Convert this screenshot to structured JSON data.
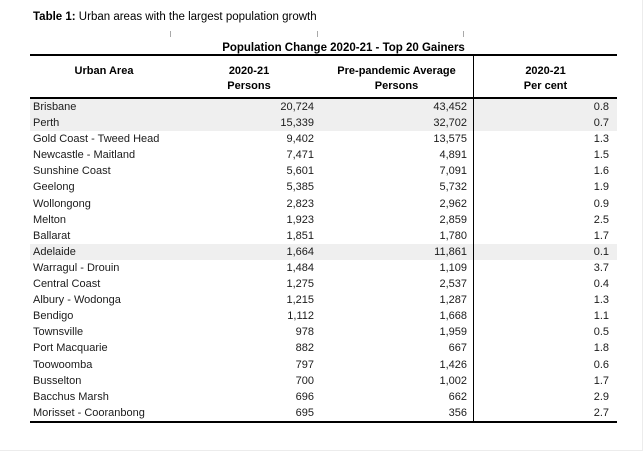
{
  "page": {
    "title_prefix": "Table 1:",
    "title_rest": " Urban areas with the largest population growth"
  },
  "table": {
    "caption": "Population Change 2020-21 - Top 20 Gainers",
    "columns": [
      {
        "line1": "Urban Area",
        "line2": ""
      },
      {
        "line1": "2020-21",
        "line2": "Persons"
      },
      {
        "line1": "Pre-pandemic Average",
        "line2": "Persons"
      },
      {
        "line1": "2020-21",
        "line2": "Per cent"
      }
    ],
    "rows": [
      {
        "urban_area": "Brisbane",
        "persons_2020_21": "20,724",
        "pre_pandemic_avg": "43,452",
        "per_cent": "0.8",
        "highlighted": true
      },
      {
        "urban_area": "Perth",
        "persons_2020_21": "15,339",
        "pre_pandemic_avg": "32,702",
        "per_cent": "0.7",
        "highlighted": true
      },
      {
        "urban_area": "Gold Coast - Tweed Head",
        "persons_2020_21": "9,402",
        "pre_pandemic_avg": "13,575",
        "per_cent": "1.3",
        "highlighted": false
      },
      {
        "urban_area": "Newcastle - Maitland",
        "persons_2020_21": "7,471",
        "pre_pandemic_avg": "4,891",
        "per_cent": "1.5",
        "highlighted": false
      },
      {
        "urban_area": "Sunshine Coast",
        "persons_2020_21": "5,601",
        "pre_pandemic_avg": "7,091",
        "per_cent": "1.6",
        "highlighted": false
      },
      {
        "urban_area": "Geelong",
        "persons_2020_21": "5,385",
        "pre_pandemic_avg": "5,732",
        "per_cent": "1.9",
        "highlighted": false
      },
      {
        "urban_area": "Wollongong",
        "persons_2020_21": "2,823",
        "pre_pandemic_avg": "2,962",
        "per_cent": "0.9",
        "highlighted": false
      },
      {
        "urban_area": "Melton",
        "persons_2020_21": "1,923",
        "pre_pandemic_avg": "2,859",
        "per_cent": "2.5",
        "highlighted": false
      },
      {
        "urban_area": "Ballarat",
        "persons_2020_21": "1,851",
        "pre_pandemic_avg": "1,780",
        "per_cent": "1.7",
        "highlighted": false
      },
      {
        "urban_area": "Adelaide",
        "persons_2020_21": "1,664",
        "pre_pandemic_avg": "11,861",
        "per_cent": "0.1",
        "highlighted": true
      },
      {
        "urban_area": "Warragul - Drouin",
        "persons_2020_21": "1,484",
        "pre_pandemic_avg": "1,109",
        "per_cent": "3.7",
        "highlighted": false
      },
      {
        "urban_area": "Central Coast",
        "persons_2020_21": "1,275",
        "pre_pandemic_avg": "2,537",
        "per_cent": "0.4",
        "highlighted": false
      },
      {
        "urban_area": "Albury - Wodonga",
        "persons_2020_21": "1,215",
        "pre_pandemic_avg": "1,287",
        "per_cent": "1.3",
        "highlighted": false
      },
      {
        "urban_area": "Bendigo",
        "persons_2020_21": "1,112",
        "pre_pandemic_avg": "1,668",
        "per_cent": "1.1",
        "highlighted": false
      },
      {
        "urban_area": "Townsville",
        "persons_2020_21": "978",
        "pre_pandemic_avg": "1,959",
        "per_cent": "0.5",
        "highlighted": false
      },
      {
        "urban_area": "Port Macquarie",
        "persons_2020_21": "882",
        "pre_pandemic_avg": "667",
        "per_cent": "1.8",
        "highlighted": false
      },
      {
        "urban_area": "Toowoomba",
        "persons_2020_21": "797",
        "pre_pandemic_avg": "1,426",
        "per_cent": "0.6",
        "highlighted": false
      },
      {
        "urban_area": "Busselton",
        "persons_2020_21": "700",
        "pre_pandemic_avg": "1,002",
        "per_cent": "1.7",
        "highlighted": false
      },
      {
        "urban_area": "Bacchus Marsh",
        "persons_2020_21": "696",
        "pre_pandemic_avg": "662",
        "per_cent": "2.9",
        "highlighted": false
      },
      {
        "urban_area": "Morisset - Cooranbong",
        "persons_2020_21": "695",
        "pre_pandemic_avg": "356",
        "per_cent": "2.7",
        "highlighted": false
      }
    ]
  },
  "colors": {
    "highlight_row": "#efefef",
    "table_border": "#000000",
    "tick_gray": "#a9a9a9"
  }
}
